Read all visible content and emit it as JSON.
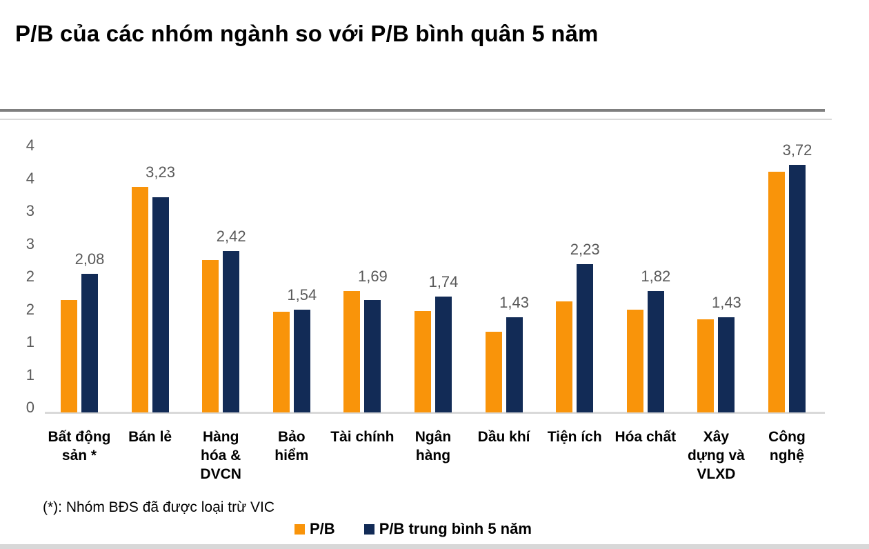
{
  "title": "P/B của các nhóm ngành so với P/B bình quân 5 năm",
  "footnote": "(*): Nhóm BĐS đã được loại trừ VIC",
  "legend": {
    "items": [
      {
        "label": "P/B",
        "color": "#F9940A"
      },
      {
        "label": "P/B trung bình 5 năm",
        "color": "#122B56"
      }
    ]
  },
  "colors": {
    "bar_orange": "#F9940A",
    "bar_navy": "#122B56",
    "axis_text": "#595959",
    "gridline": "#D9D9D9",
    "divider_dark": "#7F7F7F"
  },
  "chart_data": {
    "type": "bar",
    "title": "P/B của các nhóm ngành so với P/B bình quân 5 năm",
    "categories": [
      "Bất động sản *",
      "Bán lẻ",
      "Hàng hóa & DVCN",
      "Bảo hiểm",
      "Tài chính",
      "Ngân hàng",
      "Dầu khí",
      "Tiện ích",
      "Hóa chất",
      "Xây dựng và VLXD",
      "Công nghệ"
    ],
    "category_display": [
      "Bất động\nsản *",
      "Bán lẻ",
      "Hàng\nhóa &\nDVCN",
      "Bảo\nhiểm",
      "Tài chính",
      "Ngân\nhàng",
      "Dầu khí",
      "Tiện ích",
      "Hóa chất",
      "Xây\ndựng và\nVLXD",
      "Công\nnghệ"
    ],
    "series": [
      {
        "name": "P/B",
        "color": "#F9940A",
        "estimated": true,
        "values": [
          1.69,
          3.38,
          2.29,
          1.51,
          1.82,
          1.52,
          1.21,
          1.67,
          1.54,
          1.4,
          3.61
        ]
      },
      {
        "name": "P/B trung bình 5 năm",
        "color": "#122B56",
        "values": [
          2.08,
          3.23,
          2.42,
          1.54,
          1.69,
          1.74,
          1.43,
          2.23,
          1.82,
          1.43,
          3.72
        ],
        "data_labels": [
          "2,08",
          "3,23",
          "2,42",
          "1,54",
          "1,69",
          "1,74",
          "1,43",
          "2,23",
          "1,82",
          "1,43",
          "3,72"
        ]
      }
    ],
    "yaxis": {
      "min": 0,
      "max": 4,
      "tick_step": 0.5,
      "tick_labels_bottom_to_top": [
        "0",
        "1",
        "1",
        "2",
        "2",
        "3",
        "3",
        "4",
        "4"
      ],
      "grid": false
    },
    "legend_position": "bottom"
  }
}
